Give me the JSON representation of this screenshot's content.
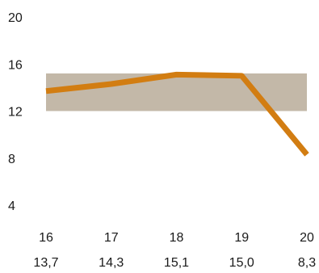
{
  "chart_data": {
    "type": "line",
    "categories": [
      "16",
      "17",
      "18",
      "19",
      "20"
    ],
    "values": [
      13.7,
      14.3,
      15.1,
      15.0,
      8.3
    ],
    "value_labels": [
      "13,7",
      "14,3",
      "15,1",
      "15,0",
      "8,3"
    ],
    "y_ticks": [
      4,
      8,
      12,
      16,
      20
    ],
    "ylim": [
      4,
      20
    ],
    "band": {
      "from": 12,
      "to": 15.2
    },
    "grid": false,
    "colors": {
      "line": "#d27d12",
      "band": "#c3b8a8"
    }
  }
}
